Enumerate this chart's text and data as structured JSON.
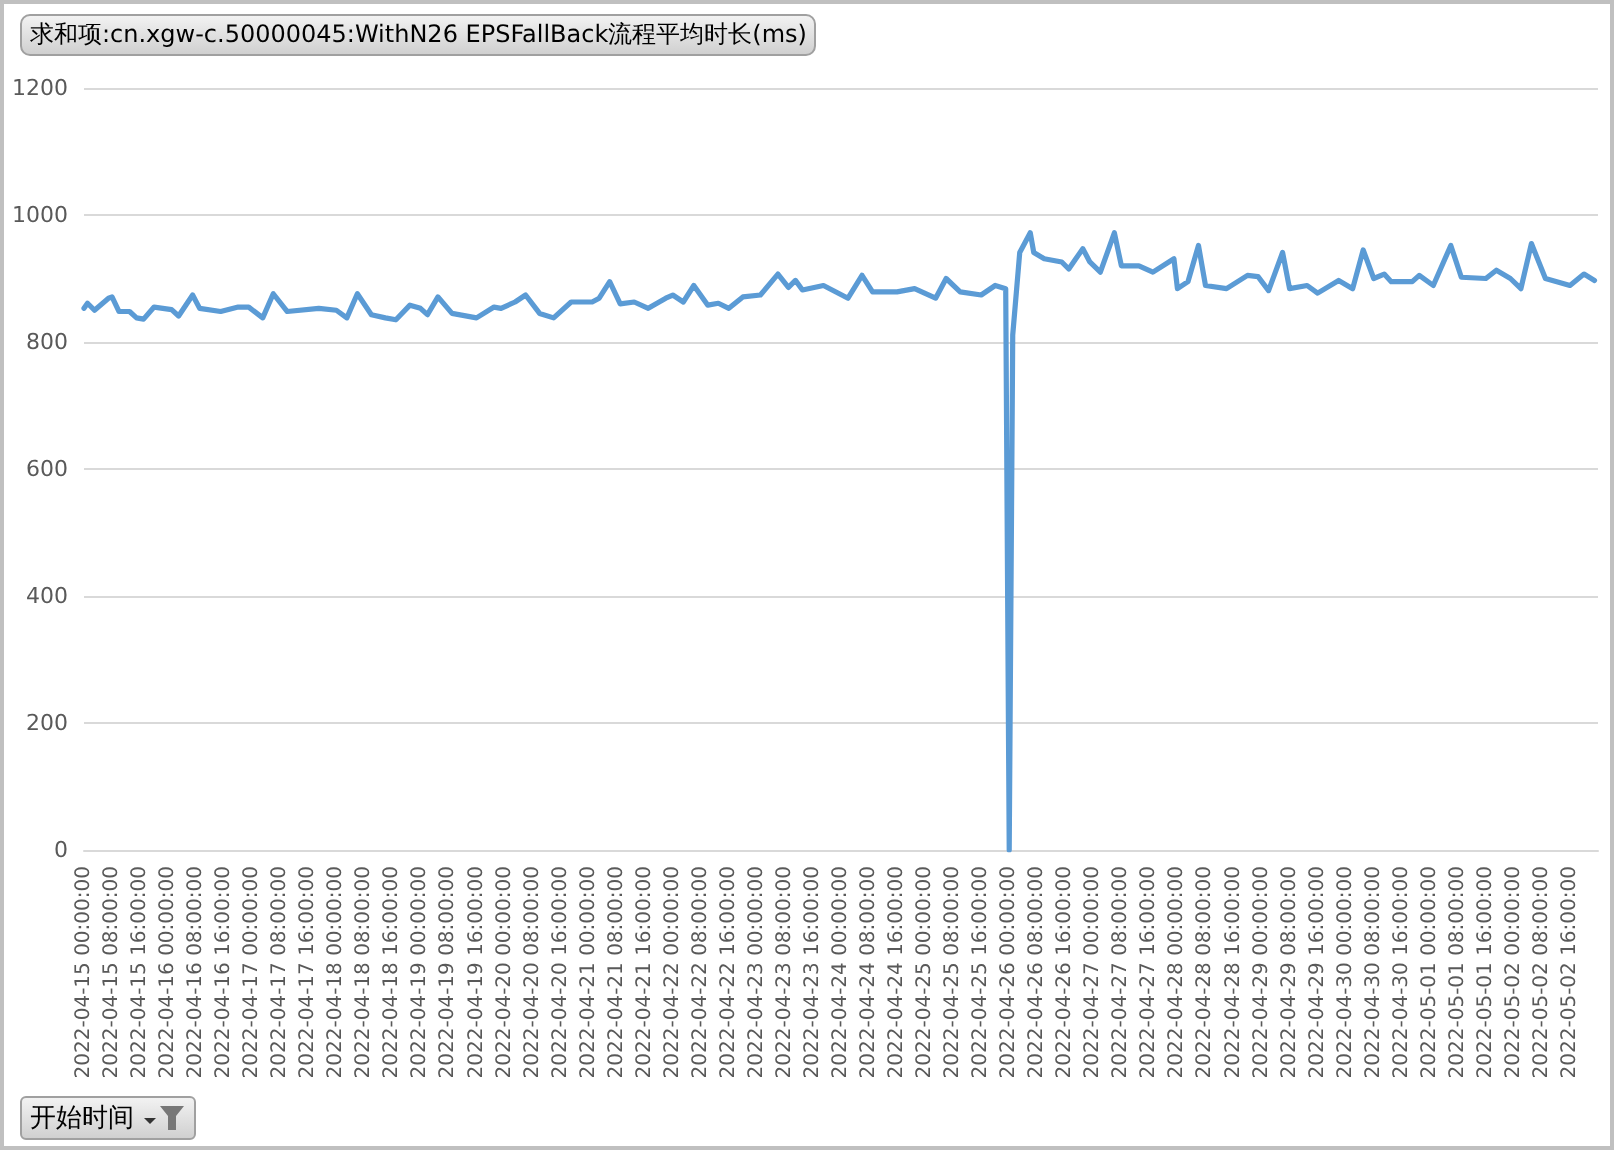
{
  "chart_data": {
    "type": "line",
    "title": "求和项:cn.xgw-c.50000045:WithN26 EPSFallBack流程平均时长(ms)",
    "annotations": [
      "开始时间"
    ],
    "x": [
      "2022-04-15T00:00",
      "2022-04-15T01:00",
      "2022-04-15T03:00",
      "2022-04-15T07:00",
      "2022-04-15T08:00",
      "2022-04-15T10:00",
      "2022-04-15T13:00",
      "2022-04-15T15:00",
      "2022-04-15T17:00",
      "2022-04-15T20:00",
      "2022-04-16T01:00",
      "2022-04-16T03:00",
      "2022-04-16T07:00",
      "2022-04-16T09:00",
      "2022-04-16T15:00",
      "2022-04-16T20:00",
      "2022-04-16T23:00",
      "2022-04-17T03:00",
      "2022-04-17T06:00",
      "2022-04-17T10:00",
      "2022-04-17T19:00",
      "2022-04-18T00:00",
      "2022-04-18T03:00",
      "2022-04-18T06:00",
      "2022-04-18T10:00",
      "2022-04-18T14:00",
      "2022-04-18T17:00",
      "2022-04-18T21:00",
      "2022-04-19T00:00",
      "2022-04-19T02:00",
      "2022-04-19T05:00",
      "2022-04-19T09:00",
      "2022-04-19T16:00",
      "2022-04-19T21:00",
      "2022-04-19T23:00",
      "2022-04-20T03:00",
      "2022-04-20T06:00",
      "2022-04-20T10:00",
      "2022-04-20T14:00",
      "2022-04-20T19:00",
      "2022-04-21T01:00",
      "2022-04-21T03:00",
      "2022-04-21T06:00",
      "2022-04-21T09:00",
      "2022-04-21T13:00",
      "2022-04-21T17:00",
      "2022-04-21T22:00",
      "2022-04-22T00:00",
      "2022-04-22T03:00",
      "2022-04-22T06:00",
      "2022-04-22T10:00",
      "2022-04-22T13:00",
      "2022-04-22T16:00",
      "2022-04-22T20:00",
      "2022-04-23T01:00",
      "2022-04-23T06:00",
      "2022-04-23T09:00",
      "2022-04-23T11:00",
      "2022-04-23T13:00",
      "2022-04-23T19:00",
      "2022-04-24T02:00",
      "2022-04-24T06:00",
      "2022-04-24T09:00",
      "2022-04-24T16:00",
      "2022-04-24T21:00",
      "2022-04-25T03:00",
      "2022-04-25T06:00",
      "2022-04-25T10:00",
      "2022-04-25T16:00",
      "2022-04-25T20:00",
      "2022-04-25T23:00",
      "2022-04-26T00:00",
      "2022-04-26T01:00",
      "2022-04-26T03:00",
      "2022-04-26T06:00",
      "2022-04-26T07:00",
      "2022-04-26T10:00",
      "2022-04-26T15:00",
      "2022-04-26T17:00",
      "2022-04-26T19:00",
      "2022-04-26T21:00",
      "2022-04-26T23:00",
      "2022-04-27T02:00",
      "2022-04-27T06:00",
      "2022-04-27T08:00",
      "2022-04-27T13:00",
      "2022-04-27T17:00",
      "2022-04-27T23:00",
      "2022-04-28T00:00",
      "2022-04-28T03:00",
      "2022-04-28T06:00",
      "2022-04-28T08:00",
      "2022-04-28T14:00",
      "2022-04-28T20:00",
      "2022-04-28T23:00",
      "2022-04-29T02:00",
      "2022-04-29T06:00",
      "2022-04-29T08:00",
      "2022-04-29T13:00",
      "2022-04-29T16:00",
      "2022-04-29T22:00",
      "2022-04-30T02:00",
      "2022-04-30T05:00",
      "2022-04-30T08:00",
      "2022-04-30T11:00",
      "2022-04-30T13:00",
      "2022-04-30T19:00",
      "2022-04-30T21:00",
      "2022-05-01T01:00",
      "2022-05-01T06:00",
      "2022-05-01T09:00",
      "2022-05-01T16:00",
      "2022-05-01T19:00",
      "2022-05-01T23:00",
      "2022-05-02T02:00",
      "2022-05-02T05:00",
      "2022-05-02T09:00",
      "2022-05-02T16:00",
      "2022-05-02T20:00",
      "2022-05-02T23:00"
    ],
    "series": [
      {
        "color": "#5b9bd5",
        "values": [
          853,
          861,
          850,
          869,
          871,
          848,
          848,
          838,
          836,
          855,
          851,
          841,
          874,
          853,
          848,
          855,
          855,
          838,
          876,
          848,
          853,
          850,
          838,
          876,
          843,
          838,
          835,
          858,
          853,
          843,
          871,
          845,
          838,
          855,
          853,
          863,
          874,
          845,
          838,
          863,
          863,
          869,
          895,
          860,
          863,
          853,
          869,
          874,
          863,
          889,
          858,
          861,
          853,
          871,
          874,
          907,
          886,
          897,
          882,
          889,
          869,
          905,
          879,
          879,
          884,
          869,
          900,
          879,
          874,
          889,
          884,
          0,
          811,
          941,
          972,
          941,
          931,
          926,
          915,
          931,
          947,
          926,
          910,
          972,
          920,
          920,
          910,
          931,
          884,
          895,
          952,
          889,
          884,
          905,
          903,
          881,
          941,
          884,
          889,
          877,
          897,
          884,
          945,
          900,
          907,
          895,
          895,
          905,
          889,
          952,
          902,
          900,
          913,
          900,
          884,
          955,
          900,
          889,
          907,
          897
        ]
      }
    ],
    "xlim": [
      "2022-04-15T00:00",
      "2022-05-03T00:00"
    ],
    "xticks": [
      {
        "value": "2022-04-15T00:00",
        "label": "2022-04-15 00:00:00"
      },
      {
        "value": "2022-04-15T08:00",
        "label": "2022-04-15 08:00:00"
      },
      {
        "value": "2022-04-15T16:00",
        "label": "2022-04-15 16:00:00"
      },
      {
        "value": "2022-04-16T00:00",
        "label": "2022-04-16 00:00:00"
      },
      {
        "value": "2022-04-16T08:00",
        "label": "2022-04-16 08:00:00"
      },
      {
        "value": "2022-04-16T16:00",
        "label": "2022-04-16 16:00:00"
      },
      {
        "value": "2022-04-17T00:00",
        "label": "2022-04-17 00:00:00"
      },
      {
        "value": "2022-04-17T08:00",
        "label": "2022-04-17 08:00:00"
      },
      {
        "value": "2022-04-17T16:00",
        "label": "2022-04-17 16:00:00"
      },
      {
        "value": "2022-04-18T00:00",
        "label": "2022-04-18 00:00:00"
      },
      {
        "value": "2022-04-18T08:00",
        "label": "2022-04-18 08:00:00"
      },
      {
        "value": "2022-04-18T16:00",
        "label": "2022-04-18 16:00:00"
      },
      {
        "value": "2022-04-19T00:00",
        "label": "2022-04-19 00:00:00"
      },
      {
        "value": "2022-04-19T08:00",
        "label": "2022-04-19 08:00:00"
      },
      {
        "value": "2022-04-19T16:00",
        "label": "2022-04-19 16:00:00"
      },
      {
        "value": "2022-04-20T00:00",
        "label": "2022-04-20 00:00:00"
      },
      {
        "value": "2022-04-20T08:00",
        "label": "2022-04-20 08:00:00"
      },
      {
        "value": "2022-04-20T16:00",
        "label": "2022-04-20 16:00:00"
      },
      {
        "value": "2022-04-21T00:00",
        "label": "2022-04-21 00:00:00"
      },
      {
        "value": "2022-04-21T08:00",
        "label": "2022-04-21 08:00:00"
      },
      {
        "value": "2022-04-21T16:00",
        "label": "2022-04-21 16:00:00"
      },
      {
        "value": "2022-04-22T00:00",
        "label": "2022-04-22 00:00:00"
      },
      {
        "value": "2022-04-22T08:00",
        "label": "2022-04-22 08:00:00"
      },
      {
        "value": "2022-04-22T16:00",
        "label": "2022-04-22 16:00:00"
      },
      {
        "value": "2022-04-23T00:00",
        "label": "2022-04-23 00:00:00"
      },
      {
        "value": "2022-04-23T08:00",
        "label": "2022-04-23 08:00:00"
      },
      {
        "value": "2022-04-23T16:00",
        "label": "2022-04-23 16:00:00"
      },
      {
        "value": "2022-04-24T00:00",
        "label": "2022-04-24 00:00:00"
      },
      {
        "value": "2022-04-24T08:00",
        "label": "2022-04-24 08:00:00"
      },
      {
        "value": "2022-04-24T16:00",
        "label": "2022-04-24 16:00:00"
      },
      {
        "value": "2022-04-25T00:00",
        "label": "2022-04-25 00:00:00"
      },
      {
        "value": "2022-04-25T08:00",
        "label": "2022-04-25 08:00:00"
      },
      {
        "value": "2022-04-25T16:00",
        "label": "2022-04-25 16:00:00"
      },
      {
        "value": "2022-04-26T00:00",
        "label": "2022-04-26 00:00:00"
      },
      {
        "value": "2022-04-26T08:00",
        "label": "2022-04-26 08:00:00"
      },
      {
        "value": "2022-04-26T16:00",
        "label": "2022-04-26 16:00:00"
      },
      {
        "value": "2022-04-27T00:00",
        "label": "2022-04-27 00:00:00"
      },
      {
        "value": "2022-04-27T08:00",
        "label": "2022-04-27 08:00:00"
      },
      {
        "value": "2022-04-27T16:00",
        "label": "2022-04-27 16:00:00"
      },
      {
        "value": "2022-04-28T00:00",
        "label": "2022-04-28 00:00:00"
      },
      {
        "value": "2022-04-28T08:00",
        "label": "2022-04-28 08:00:00"
      },
      {
        "value": "2022-04-28T16:00",
        "label": "2022-04-28 16:00:00"
      },
      {
        "value": "2022-04-29T00:00",
        "label": "2022-04-29 00:00:00"
      },
      {
        "value": "2022-04-29T08:00",
        "label": "2022-04-29 08:00:00"
      },
      {
        "value": "2022-04-29T16:00",
        "label": "2022-04-29 16:00:00"
      },
      {
        "value": "2022-04-30T00:00",
        "label": "2022-04-30 00:00:00"
      },
      {
        "value": "2022-04-30T08:00",
        "label": "2022-04-30 08:00:00"
      },
      {
        "value": "2022-04-30T16:00",
        "label": "2022-04-30 16:00:00"
      },
      {
        "value": "2022-05-01T00:00",
        "label": "2022-05-01 00:00:00"
      },
      {
        "value": "2022-05-01T08:00",
        "label": "2022-05-01 08:00:00"
      },
      {
        "value": "2022-05-01T16:00",
        "label": "2022-05-01 16:00:00"
      },
      {
        "value": "2022-05-02T00:00",
        "label": "2022-05-02 00:00:00"
      },
      {
        "value": "2022-05-02T08:00",
        "label": "2022-05-02 08:00:00"
      },
      {
        "value": "2022-05-02T16:00",
        "label": "2022-05-02 16:00:00"
      }
    ],
    "ylim": [
      0,
      1200
    ],
    "yticks": [
      0,
      200,
      400,
      600,
      800,
      1000,
      1200
    ],
    "grid": "y",
    "marker": "none",
    "line_style": "solid"
  }
}
